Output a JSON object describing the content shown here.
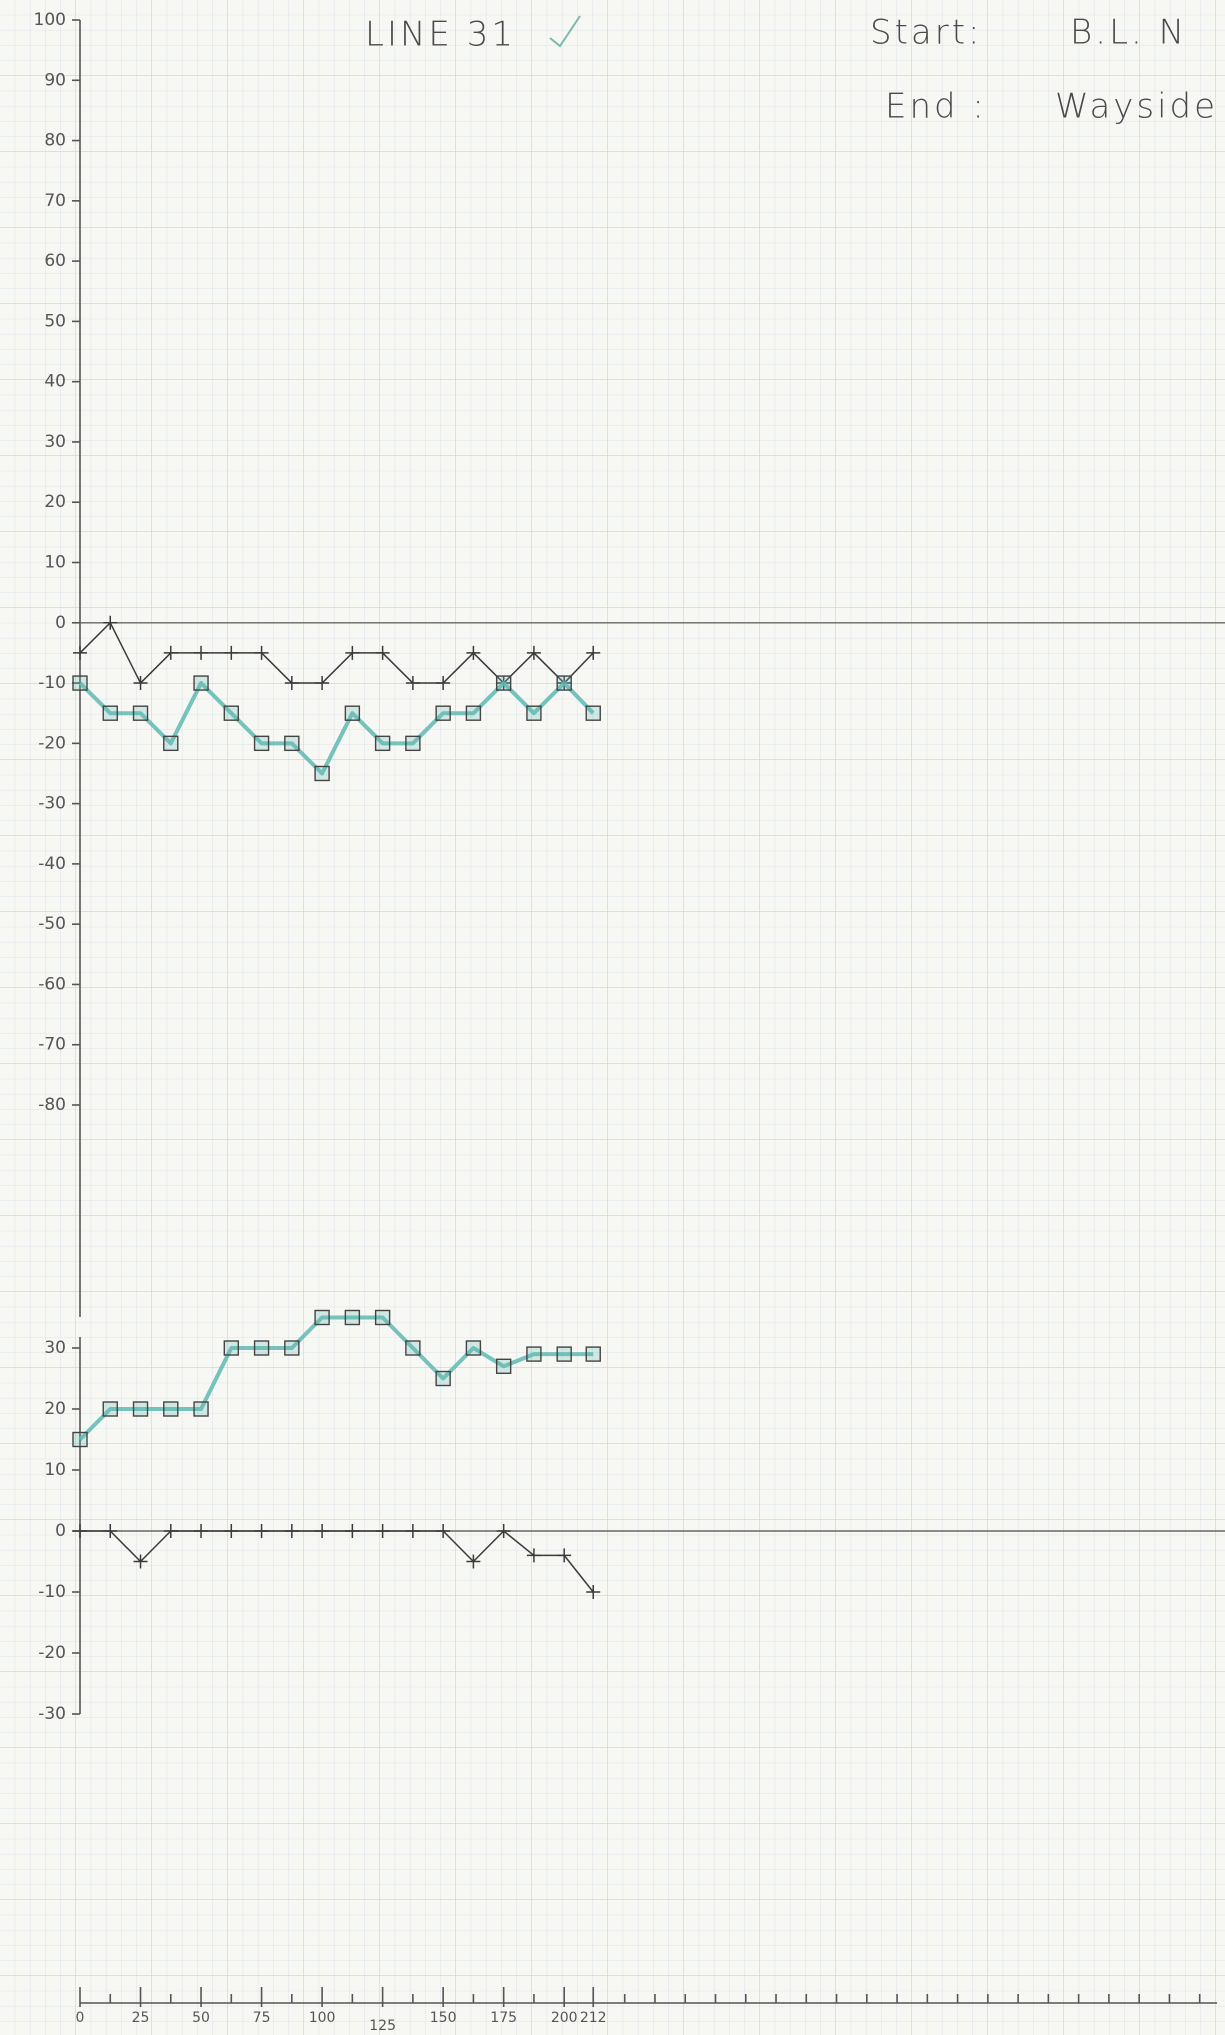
{
  "chart_data": [
    {
      "type": "line",
      "title": "LINE 31",
      "annotations": [
        "Start:",
        "B.L. N",
        "End :",
        "Wayside"
      ],
      "x": [
        0,
        12.5,
        25,
        37.5,
        50,
        62.5,
        75,
        87.5,
        100,
        112.5,
        125,
        137.5,
        150,
        162.5,
        175,
        187.5,
        200,
        212
      ],
      "xlim": [
        0,
        468
      ],
      "ylim": [
        -80,
        100
      ],
      "yticks": [
        100,
        90,
        80,
        70,
        60,
        50,
        40,
        30,
        20,
        10,
        0,
        -10,
        -20,
        -30,
        -40,
        -50,
        -60,
        -70,
        -80
      ],
      "series": [
        {
          "color": "#3a3a3a",
          "marker": "plus",
          "values": [
            -5,
            0,
            -10,
            -5,
            -5,
            -5,
            -5,
            -10,
            -10,
            -5,
            -5,
            -10,
            -10,
            -5,
            -10,
            -5,
            -10,
            -5
          ]
        },
        {
          "color": "#5fb9b1",
          "marker": "square",
          "values": [
            -10,
            -15,
            -15,
            -20,
            -10,
            -15,
            -20,
            -20,
            -25,
            -15,
            -20,
            -20,
            -15,
            -15,
            -10,
            -15,
            -10,
            -15
          ]
        }
      ]
    },
    {
      "type": "line",
      "x": [
        0,
        12.5,
        25,
        37.5,
        50,
        62.5,
        75,
        87.5,
        100,
        112.5,
        125,
        137.5,
        150,
        162.5,
        175,
        187.5,
        200,
        212
      ],
      "xlim": [
        0,
        468
      ],
      "xticks": [
        0,
        25,
        50,
        75,
        100,
        125,
        150,
        175,
        200,
        212
      ],
      "xminorticks": [
        12.5,
        37.5,
        62.5,
        87.5,
        112.5,
        137.5,
        162.5,
        187.5,
        225,
        237.5,
        250,
        262.5,
        275,
        287.5,
        300,
        312.5,
        325,
        337.5,
        350,
        362.5,
        375,
        387.5,
        400,
        412.5,
        425,
        437.5,
        450,
        462.5
      ],
      "ylim": [
        -30,
        30
      ],
      "yticks": [
        30,
        20,
        10,
        0,
        -10,
        -20,
        -30
      ],
      "series": [
        {
          "color": "#5fb9b1",
          "marker": "square",
          "values": [
            15,
            20,
            20,
            20,
            20,
            30,
            30,
            30,
            35,
            35,
            35,
            30,
            25,
            30,
            27,
            29,
            29,
            29
          ]
        },
        {
          "color": "#3a3a3a",
          "marker": "plus",
          "values": [
            0,
            0,
            -5,
            0,
            0,
            0,
            0,
            0,
            0,
            0,
            0,
            0,
            0,
            -5,
            0,
            -4,
            -4,
            -10
          ]
        }
      ]
    }
  ]
}
